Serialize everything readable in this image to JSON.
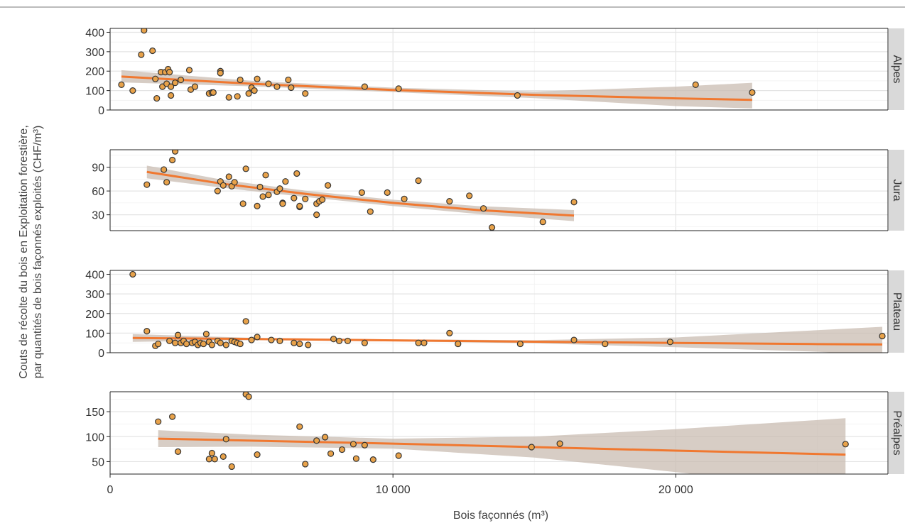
{
  "chart_data": {
    "type": "scatter",
    "xlabel": "Bois façonnés (m³)",
    "ylabel_lines": [
      "Couts de récolte du bois en Exploitation forestière,",
      "par quantités de bois façonnés exploités (CHF/m³)"
    ],
    "xlim": [
      0,
      27500
    ],
    "x_ticks": [
      0,
      10000,
      20000
    ],
    "x_tick_labels": [
      "0",
      "10 000",
      "20 000"
    ],
    "colors": {
      "point_fill": "#e8a24a",
      "point_stroke": "#333333",
      "trend": "#f07830",
      "band": "#c9bcb2",
      "strip": "#d9d9d9"
    },
    "panels": [
      {
        "label": "Alpes",
        "ylim": [
          0,
          420
        ],
        "y_ticks": [
          0,
          100,
          200,
          300,
          400
        ],
        "points": [
          [
            400,
            130
          ],
          [
            800,
            100
          ],
          [
            1100,
            285
          ],
          [
            1200,
            410
          ],
          [
            1500,
            305
          ],
          [
            1600,
            160
          ],
          [
            1650,
            60
          ],
          [
            1800,
            195
          ],
          [
            1850,
            120
          ],
          [
            1950,
            195
          ],
          [
            2000,
            135
          ],
          [
            2050,
            210
          ],
          [
            2100,
            195
          ],
          [
            2150,
            75
          ],
          [
            2150,
            120
          ],
          [
            2300,
            140
          ],
          [
            2500,
            155
          ],
          [
            2800,
            205
          ],
          [
            2850,
            105
          ],
          [
            3000,
            120
          ],
          [
            3500,
            85
          ],
          [
            3600,
            90
          ],
          [
            3650,
            90
          ],
          [
            3900,
            200
          ],
          [
            3900,
            190
          ],
          [
            4200,
            65
          ],
          [
            4500,
            70
          ],
          [
            4600,
            155
          ],
          [
            4900,
            85
          ],
          [
            5000,
            115
          ],
          [
            5100,
            100
          ],
          [
            5200,
            160
          ],
          [
            5600,
            135
          ],
          [
            5900,
            120
          ],
          [
            6300,
            155
          ],
          [
            6400,
            115
          ],
          [
            6900,
            85
          ],
          [
            9000,
            120
          ],
          [
            10200,
            110
          ],
          [
            14400,
            75
          ],
          [
            20700,
            130
          ],
          [
            22700,
            90
          ]
        ],
        "trend": [
          [
            400,
            172
          ],
          [
            5000,
            135
          ],
          [
            10000,
            103
          ],
          [
            15000,
            78
          ],
          [
            20000,
            60
          ],
          [
            22700,
            52
          ]
        ],
        "band_upper": [
          [
            400,
            205
          ],
          [
            5000,
            150
          ],
          [
            10000,
            115
          ],
          [
            15000,
            95
          ],
          [
            20000,
            120
          ],
          [
            22700,
            140
          ]
        ],
        "band_lower": [
          [
            400,
            142
          ],
          [
            5000,
            122
          ],
          [
            10000,
            92
          ],
          [
            15000,
            61
          ],
          [
            20000,
            20
          ],
          [
            22700,
            8
          ]
        ]
      },
      {
        "label": "Jura",
        "ylim": [
          10,
          112
        ],
        "y_ticks": [
          30,
          60,
          90
        ],
        "points": [
          [
            1300,
            68
          ],
          [
            1900,
            87
          ],
          [
            2000,
            71
          ],
          [
            2200,
            99
          ],
          [
            2300,
            110
          ],
          [
            3800,
            60
          ],
          [
            3900,
            72
          ],
          [
            4000,
            67
          ],
          [
            4200,
            78
          ],
          [
            4300,
            66
          ],
          [
            4400,
            71
          ],
          [
            4700,
            44
          ],
          [
            4800,
            88
          ],
          [
            5200,
            41
          ],
          [
            5300,
            65
          ],
          [
            5400,
            53
          ],
          [
            5500,
            80
          ],
          [
            5600,
            55
          ],
          [
            5900,
            59
          ],
          [
            6000,
            63
          ],
          [
            6100,
            45
          ],
          [
            6100,
            44
          ],
          [
            6200,
            72
          ],
          [
            6500,
            51
          ],
          [
            6600,
            82
          ],
          [
            6700,
            40
          ],
          [
            6700,
            41
          ],
          [
            6900,
            50
          ],
          [
            7300,
            44
          ],
          [
            7300,
            30
          ],
          [
            7400,
            47
          ],
          [
            7500,
            49
          ],
          [
            7700,
            67
          ],
          [
            8900,
            58
          ],
          [
            9200,
            34
          ],
          [
            9800,
            58
          ],
          [
            10400,
            50
          ],
          [
            10900,
            73
          ],
          [
            12000,
            47
          ],
          [
            12700,
            54
          ],
          [
            13200,
            38
          ],
          [
            13500,
            14
          ],
          [
            15300,
            21
          ],
          [
            16400,
            46
          ]
        ],
        "trend": [
          [
            1300,
            84
          ],
          [
            4000,
            69
          ],
          [
            7000,
            56
          ],
          [
            10000,
            45
          ],
          [
            13000,
            36
          ],
          [
            16400,
            29
          ]
        ],
        "band_upper": [
          [
            1300,
            92
          ],
          [
            4000,
            74
          ],
          [
            7000,
            60
          ],
          [
            10000,
            49
          ],
          [
            13000,
            41
          ],
          [
            16400,
            36
          ]
        ],
        "band_lower": [
          [
            1300,
            76
          ],
          [
            4000,
            64
          ],
          [
            7000,
            52
          ],
          [
            10000,
            41
          ],
          [
            13000,
            31
          ],
          [
            16400,
            22
          ]
        ]
      },
      {
        "label": "Plateau",
        "ylim": [
          0,
          420
        ],
        "y_ticks": [
          0,
          100,
          200,
          300,
          400
        ],
        "points": [
          [
            800,
            400
          ],
          [
            1300,
            110
          ],
          [
            1600,
            35
          ],
          [
            1700,
            45
          ],
          [
            2100,
            60
          ],
          [
            2300,
            50
          ],
          [
            2400,
            90
          ],
          [
            2500,
            50
          ],
          [
            2600,
            60
          ],
          [
            2700,
            45
          ],
          [
            2900,
            50
          ],
          [
            3000,
            55
          ],
          [
            3100,
            40
          ],
          [
            3200,
            50
          ],
          [
            3300,
            45
          ],
          [
            3400,
            95
          ],
          [
            3500,
            55
          ],
          [
            3600,
            40
          ],
          [
            3800,
            60
          ],
          [
            3900,
            50
          ],
          [
            4100,
            40
          ],
          [
            4300,
            60
          ],
          [
            4400,
            55
          ],
          [
            4500,
            50
          ],
          [
            4600,
            45
          ],
          [
            4800,
            160
          ],
          [
            5000,
            65
          ],
          [
            5200,
            80
          ],
          [
            5700,
            65
          ],
          [
            6000,
            60
          ],
          [
            6500,
            50
          ],
          [
            6700,
            45
          ],
          [
            7000,
            40
          ],
          [
            7900,
            70
          ],
          [
            8100,
            60
          ],
          [
            8400,
            60
          ],
          [
            9000,
            50
          ],
          [
            10900,
            50
          ],
          [
            11100,
            50
          ],
          [
            12000,
            100
          ],
          [
            12300,
            45
          ],
          [
            14500,
            45
          ],
          [
            16400,
            65
          ],
          [
            17500,
            45
          ],
          [
            19800,
            55
          ],
          [
            27300,
            85
          ]
        ],
        "trend": [
          [
            800,
            75
          ],
          [
            5000,
            70
          ],
          [
            10000,
            63
          ],
          [
            15000,
            56
          ],
          [
            20000,
            50
          ],
          [
            25000,
            44
          ],
          [
            27300,
            42
          ]
        ],
        "band_upper": [
          [
            800,
            95
          ],
          [
            5000,
            76
          ],
          [
            10000,
            68
          ],
          [
            15000,
            64
          ],
          [
            20000,
            78
          ],
          [
            25000,
            115
          ],
          [
            27300,
            132
          ]
        ],
        "band_lower": [
          [
            800,
            55
          ],
          [
            5000,
            64
          ],
          [
            10000,
            58
          ],
          [
            15000,
            48
          ],
          [
            20000,
            28
          ],
          [
            25000,
            5
          ],
          [
            27300,
            -12
          ]
        ]
      },
      {
        "label": "Préalpes",
        "ylim": [
          25,
          190
        ],
        "y_ticks": [
          50,
          100,
          150
        ],
        "points": [
          [
            1700,
            130
          ],
          [
            2200,
            140
          ],
          [
            2400,
            70
          ],
          [
            3500,
            55
          ],
          [
            3600,
            67
          ],
          [
            3700,
            55
          ],
          [
            4000,
            60
          ],
          [
            4100,
            95
          ],
          [
            4300,
            40
          ],
          [
            4800,
            185
          ],
          [
            4900,
            180
          ],
          [
            5200,
            64
          ],
          [
            6700,
            120
          ],
          [
            6900,
            45
          ],
          [
            7300,
            92
          ],
          [
            7600,
            99
          ],
          [
            7800,
            66
          ],
          [
            8200,
            74
          ],
          [
            8600,
            85
          ],
          [
            8700,
            56
          ],
          [
            9000,
            83
          ],
          [
            9300,
            54
          ],
          [
            10200,
            62
          ],
          [
            14900,
            79
          ],
          [
            15900,
            86
          ],
          [
            26000,
            85
          ]
        ],
        "trend": [
          [
            1700,
            96
          ],
          [
            5000,
            92
          ],
          [
            10000,
            86
          ],
          [
            15000,
            79
          ],
          [
            20000,
            72
          ],
          [
            26000,
            64
          ]
        ],
        "band_upper": [
          [
            1700,
            113
          ],
          [
            5000,
            104
          ],
          [
            10000,
            96
          ],
          [
            15000,
            100
          ],
          [
            20000,
            115
          ],
          [
            26000,
            137
          ]
        ],
        "band_lower": [
          [
            1700,
            79
          ],
          [
            5000,
            80
          ],
          [
            10000,
            76
          ],
          [
            15000,
            58
          ],
          [
            20000,
            29
          ],
          [
            26000,
            -9
          ]
        ]
      }
    ]
  }
}
